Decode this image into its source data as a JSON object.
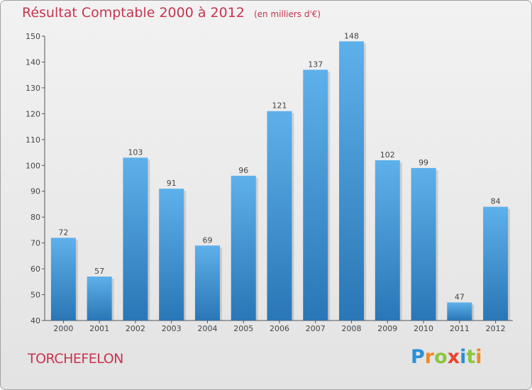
{
  "chart_data": {
    "type": "bar",
    "title": "Résultat Comptable 2000 à 2012",
    "unit_note": "(en milliers d'€)",
    "categories": [
      "2000",
      "2001",
      "2002",
      "2003",
      "2004",
      "2005",
      "2006",
      "2007",
      "2008",
      "2009",
      "2010",
      "2011",
      "2012"
    ],
    "values": [
      72,
      57,
      103,
      91,
      69,
      96,
      121,
      137,
      148,
      102,
      99,
      47,
      84
    ],
    "ylim": [
      40,
      150
    ],
    "yticks": [
      40,
      50,
      60,
      70,
      80,
      90,
      100,
      110,
      120,
      130,
      140,
      150
    ],
    "grid": false,
    "xlabel": "",
    "ylabel": ""
  },
  "footer": {
    "commune": "TORCHEFELON",
    "logo_letters": [
      "P",
      "r",
      "o",
      "x",
      "i",
      "t",
      "i"
    ]
  },
  "colors": {
    "title": "#c7344e",
    "bar_top": "#5eb0ea",
    "bar_bottom": "#2a76b6",
    "axis": "#555555"
  }
}
